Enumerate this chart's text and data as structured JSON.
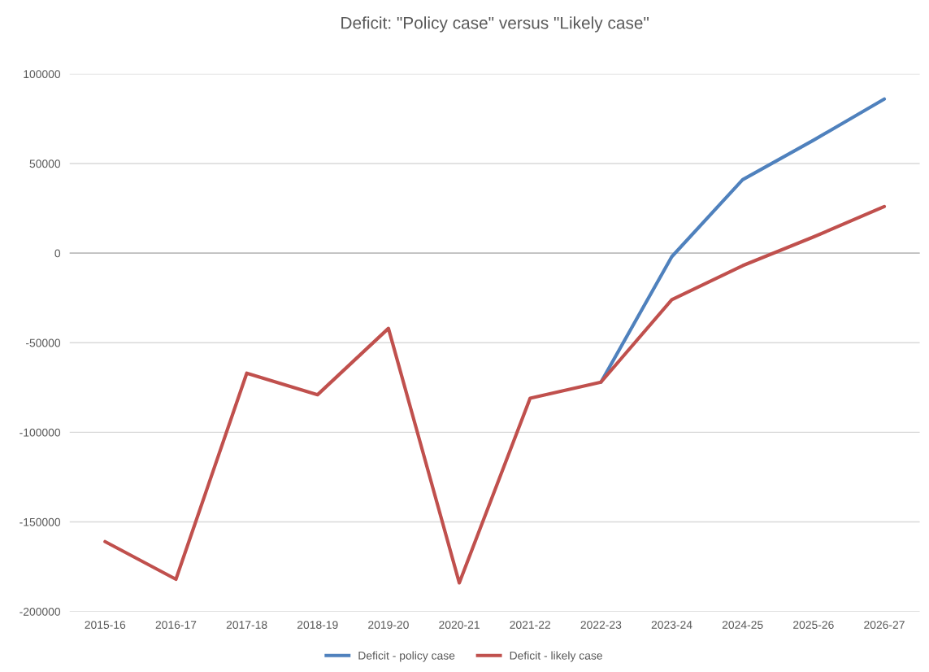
{
  "chart_data": {
    "type": "line",
    "title": "Deficit: \"Policy case\" versus \"Likely case\"",
    "categories": [
      "2015-16",
      "2016-17",
      "2017-18",
      "2018-19",
      "2019-20",
      "2020-21",
      "2021-22",
      "2022-23",
      "2023-24",
      "2024-25",
      "2025-26",
      "2026-27"
    ],
    "series": [
      {
        "name": "Deficit - policy case",
        "color": "#4f81bd",
        "values": [
          null,
          null,
          null,
          null,
          null,
          null,
          null,
          -72000,
          -2000,
          41000,
          63000,
          86000
        ]
      },
      {
        "name": "Deficit - likely case",
        "color": "#c0504d",
        "values": [
          -161000,
          -182000,
          -67000,
          -79000,
          -42000,
          -184000,
          -81000,
          -72000,
          -26000,
          -7000,
          9000,
          26000
        ]
      }
    ],
    "ylim": [
      -200000,
      100000
    ],
    "yticks": [
      -200000,
      -150000,
      -100000,
      -50000,
      0,
      50000,
      100000
    ],
    "grid": "y",
    "legend": "bottom",
    "marker": "none",
    "line_style": "solid"
  }
}
